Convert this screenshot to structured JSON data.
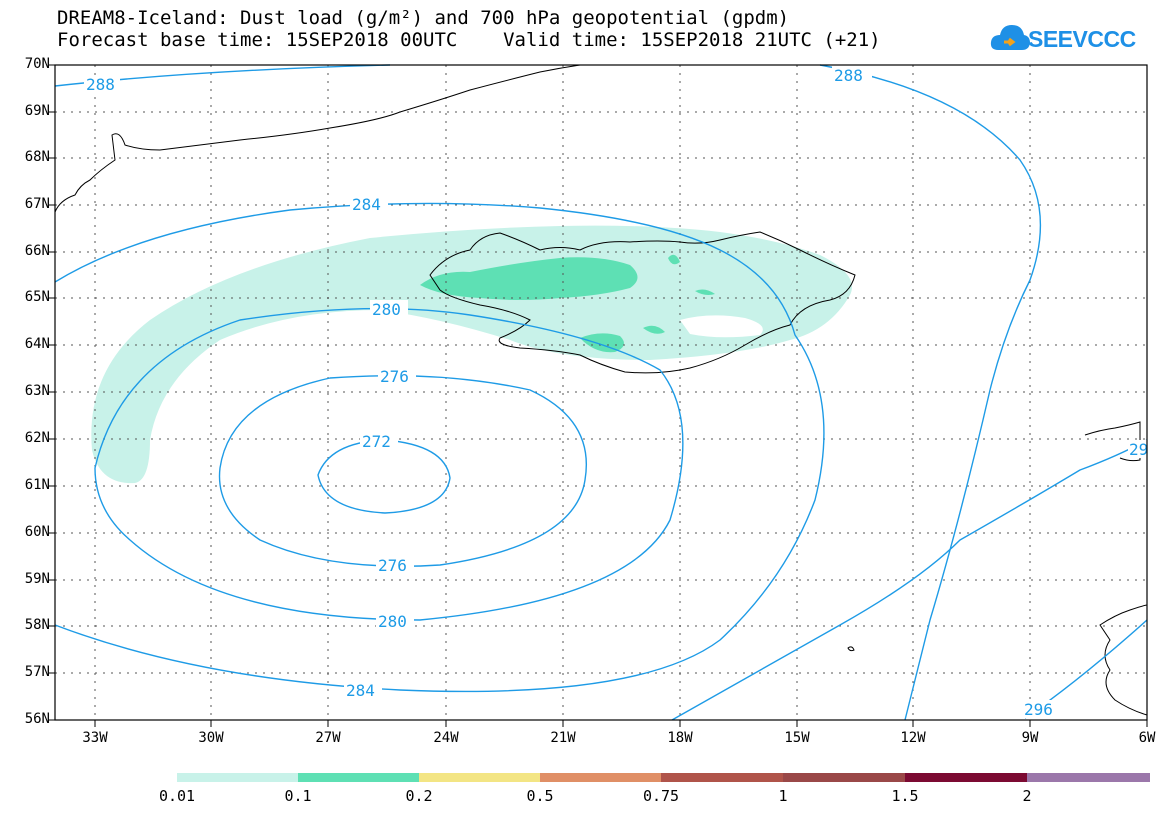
{
  "title": {
    "line1": "DREAM8-Iceland: Dust load (g/m²) and 700 hPa geopotential (gpdm)",
    "line2": "Forecast base time: 15SEP2018 00UTC    Valid time: 15SEP2018 21UTC (+21)"
  },
  "logo": {
    "text": "SEEVCCC",
    "icon": "cloud-icon"
  },
  "axes": {
    "lat_labels": [
      "70N",
      "69N",
      "68N",
      "67N",
      "66N",
      "65N",
      "64N",
      "63N",
      "62N",
      "61N",
      "60N",
      "59N",
      "58N",
      "57N",
      "56N"
    ],
    "lon_labels": [
      "33W",
      "30W",
      "27W",
      "24W",
      "21W",
      "18W",
      "15W",
      "12W",
      "9W",
      "6W"
    ]
  },
  "contours": {
    "color": "#1e9be6",
    "labels": [
      "288",
      "288",
      "284",
      "280",
      "276",
      "272",
      "276",
      "280",
      "284",
      "29",
      "296"
    ]
  },
  "dust": {
    "light_color": "#c8f2e9",
    "mid_color": "#5ee0b4"
  },
  "colorbar": {
    "colors": [
      "#c8f2e9",
      "#5ee0b4",
      "#f3e584",
      "#e08f66",
      "#b0544a",
      "#9a4848",
      "#7c0a32",
      "#3b2a1a",
      "#9b77aa"
    ],
    "labels": [
      "0.01",
      "0.1",
      "0.2",
      "0.5",
      "0.75",
      "1",
      "1.5",
      "2"
    ]
  }
}
